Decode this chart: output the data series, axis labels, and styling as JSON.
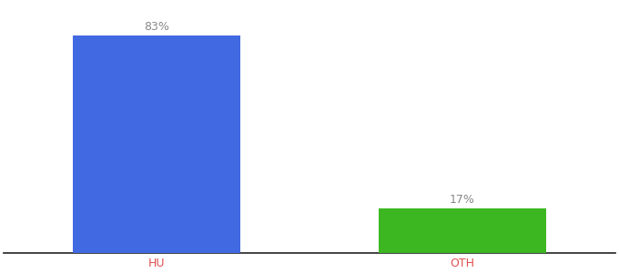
{
  "categories": [
    "HU",
    "OTH"
  ],
  "values": [
    83,
    17
  ],
  "bar_colors": [
    "#4169E1",
    "#3CB722"
  ],
  "bar_labels": [
    "83%",
    "17%"
  ],
  "background_color": "#ffffff",
  "label_color": "#888888",
  "tick_color": "#e05050",
  "ylim": [
    0,
    95
  ],
  "bar_width": 0.55,
  "label_fontsize": 9,
  "tick_fontsize": 9,
  "xlim": [
    -0.5,
    1.5
  ]
}
